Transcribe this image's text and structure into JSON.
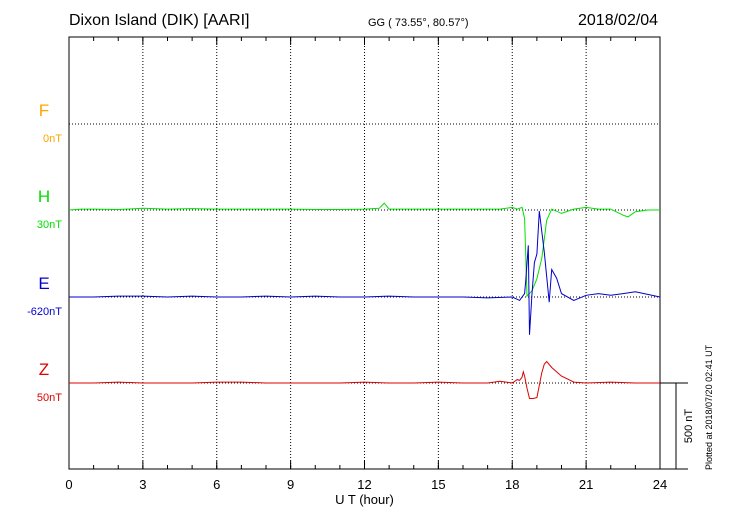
{
  "header": {
    "station": "Dixon Island (DIK)  [AARI]",
    "coords": "GG ( 73.55°,  80.57°)",
    "date": "2018/02/04"
  },
  "footer": {
    "plotted": "Plotted at 2018/07/20 02:41 UT"
  },
  "colors": {
    "F": "#ffa500",
    "H": "#00e000",
    "E": "#0000cc",
    "Z": "#e00000"
  },
  "chart_data": {
    "type": "line",
    "xlabel": "U T (hour)",
    "xlim": [
      0,
      24
    ],
    "xticks": [
      "0",
      "3",
      "6",
      "9",
      "12",
      "15",
      "18",
      "21",
      "24"
    ],
    "scale_bar": "500 nT",
    "grid": true,
    "series": [
      {
        "name": "F",
        "offset_label": "0nT",
        "color": "#ffa500",
        "x": [],
        "values": []
      },
      {
        "name": "H",
        "offset_label": "30nT",
        "color": "#00e000",
        "x": [
          0,
          0.5,
          1,
          2,
          3,
          4,
          5,
          6,
          7,
          8,
          9,
          10,
          11,
          12,
          12.6,
          12.8,
          13,
          14,
          15,
          16,
          17,
          17.5,
          18,
          18.2,
          18.4,
          18.5,
          18.6,
          18.8,
          19.0,
          19.2,
          19.4,
          19.6,
          20,
          20.5,
          21,
          21.5,
          22,
          22.5,
          22.7,
          23,
          23.5,
          24
        ],
        "values": [
          0,
          5,
          5,
          3,
          10,
          5,
          8,
          5,
          5,
          5,
          5,
          3,
          3,
          5,
          10,
          40,
          5,
          5,
          5,
          5,
          5,
          5,
          15,
          5,
          15,
          -50,
          -500,
          -470,
          -400,
          -280,
          -60,
          5,
          -20,
          5,
          15,
          5,
          5,
          -30,
          -40,
          -10,
          0,
          0
        ]
      },
      {
        "name": "E",
        "offset_label": "-620nT",
        "color": "#0000cc",
        "x": [
          0,
          1,
          2,
          3,
          4,
          5,
          6,
          7,
          8,
          9,
          10,
          11,
          12,
          13,
          14,
          15,
          16,
          17,
          18,
          18.3,
          18.5,
          18.55,
          18.65,
          18.7,
          18.8,
          18.9,
          19.0,
          19.1,
          19.2,
          19.3,
          19.5,
          19.6,
          19.8,
          20,
          20.5,
          21,
          21.5,
          22,
          22.5,
          23,
          24
        ],
        "values": [
          0,
          0,
          5,
          5,
          0,
          5,
          0,
          0,
          5,
          0,
          5,
          0,
          0,
          5,
          0,
          0,
          0,
          -5,
          0,
          -20,
          20,
          100,
          300,
          -220,
          20,
          200,
          250,
          500,
          380,
          260,
          -30,
          160,
          110,
          20,
          -20,
          10,
          20,
          10,
          20,
          30,
          0
        ]
      },
      {
        "name": "Z",
        "offset_label": "50nT",
        "color": "#e00000",
        "x": [
          0,
          1,
          2,
          3,
          4,
          5,
          6,
          7,
          8,
          9,
          10,
          11,
          12,
          13,
          14,
          15,
          16,
          17,
          17.5,
          18,
          18.2,
          18.3,
          18.4,
          18.45,
          18.5,
          18.6,
          18.7,
          18.85,
          19.0,
          19.2,
          19.3,
          19.4,
          19.6,
          20,
          20.5,
          21,
          22,
          23,
          24
        ],
        "values": [
          0,
          0,
          5,
          0,
          0,
          0,
          5,
          5,
          0,
          0,
          0,
          0,
          5,
          0,
          0,
          5,
          0,
          0,
          10,
          0,
          20,
          15,
          35,
          65,
          40,
          -30,
          -90,
          -90,
          -85,
          60,
          110,
          125,
          90,
          40,
          5,
          0,
          5,
          0,
          0
        ]
      }
    ]
  }
}
